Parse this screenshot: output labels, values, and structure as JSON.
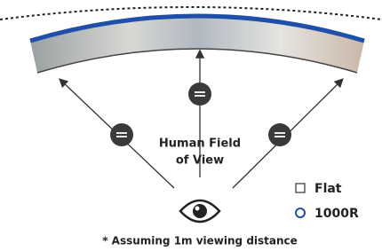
{
  "center_label": {
    "line1": "Human Field",
    "line2": "of View"
  },
  "legend": [
    {
      "label": "Flat"
    },
    {
      "label": "1000R"
    }
  ],
  "footnote": "* Assuming 1m viewing distance"
}
